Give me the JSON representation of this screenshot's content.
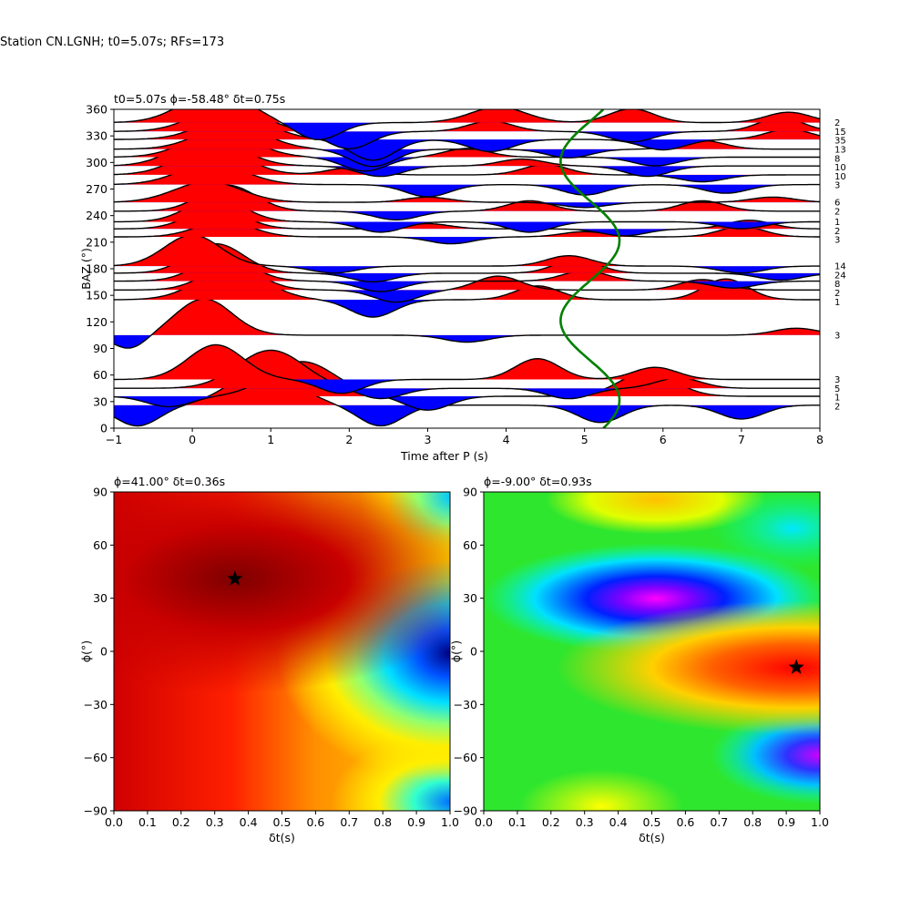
{
  "figure": {
    "suptitle": "Station CN.LGNH; t0=5.07s; RFs=173"
  },
  "chart_data": [
    {
      "type": "line",
      "subtype": "receiver-function-wiggles",
      "title": "t0=5.07s ϕ=-58.48° δt=0.75s",
      "xlabel": "Time after P (s)",
      "ylabel": "BAZ (°)",
      "xlim": [
        -1,
        8
      ],
      "ylim": [
        0,
        360
      ],
      "xticks": [
        -1,
        0,
        1,
        2,
        3,
        4,
        5,
        6,
        7,
        8
      ],
      "yticks": [
        0,
        30,
        60,
        90,
        120,
        150,
        180,
        210,
        240,
        270,
        300,
        330,
        360
      ],
      "positive_fill": "#ff0000",
      "negative_fill": "#0000ff",
      "fitted_curve_color": "#008000",
      "traces": [
        {
          "baz": 345,
          "count": "2",
          "components": [
            [
              0.3,
              0.9,
              60
            ],
            [
              1.6,
              -0.5,
              40
            ],
            [
              3.9,
              0.45,
              50
            ],
            [
              5.6,
              0.4,
              40
            ],
            [
              7.6,
              0.3,
              40
            ]
          ]
        },
        {
          "baz": 335,
          "count": "15",
          "components": [
            [
              0.45,
              0.75,
              60
            ],
            [
              2.0,
              -0.5,
              40
            ],
            [
              3.8,
              0.3,
              40
            ],
            [
              5.6,
              -0.3,
              40
            ],
            [
              7.5,
              0.4,
              40
            ]
          ]
        },
        {
          "baz": 326,
          "count": "35",
          "components": [
            [
              0.55,
              0.7,
              60
            ],
            [
              2.3,
              -0.6,
              40
            ],
            [
              3.8,
              -0.35,
              40
            ],
            [
              6.0,
              -0.3,
              40
            ],
            [
              7.6,
              0.3,
              40
            ]
          ]
        },
        {
          "baz": 315,
          "count": "13",
          "components": [
            [
              0.5,
              0.7,
              60
            ],
            [
              2.3,
              -0.5,
              40
            ],
            [
              4.8,
              -0.25,
              40
            ],
            [
              6.5,
              0.25,
              40
            ]
          ]
        },
        {
          "baz": 306,
          "count": "8",
          "components": [
            [
              0.35,
              0.75,
              60
            ],
            [
              2.2,
              -0.4,
              40
            ],
            [
              3.5,
              0.25,
              40
            ],
            [
              5.9,
              -0.25,
              40
            ]
          ]
        },
        {
          "baz": 296,
          "count": "10",
          "components": [
            [
              0.2,
              0.8,
              60
            ],
            [
              2.4,
              -0.3,
              40
            ],
            [
              4.2,
              0.2,
              40
            ],
            [
              5.8,
              -0.3,
              40
            ]
          ]
        },
        {
          "baz": 286,
          "count": "10",
          "components": [
            [
              0.25,
              0.8,
              60
            ],
            [
              2.0,
              0.2,
              40
            ],
            [
              4.5,
              0.3,
              40
            ],
            [
              6.5,
              -0.2,
              40
            ]
          ]
        },
        {
          "baz": 275,
          "count": "3",
          "components": [
            [
              0.25,
              0.6,
              60
            ],
            [
              3.0,
              -0.35,
              40
            ],
            [
              5.0,
              -0.3,
              40
            ],
            [
              6.8,
              -0.25,
              40
            ]
          ]
        },
        {
          "baz": 255,
          "count": "6",
          "components": [
            [
              0.2,
              0.6,
              60
            ],
            [
              3.0,
              0.15,
              40
            ],
            [
              5.0,
              -0.15,
              40
            ],
            [
              7.4,
              0.15,
              40
            ]
          ]
        },
        {
          "baz": 245,
          "count": "2",
          "components": [
            [
              0.45,
              0.75,
              50
            ],
            [
              2.6,
              -0.25,
              40
            ],
            [
              4.3,
              0.3,
              40
            ],
            [
              6.5,
              0.3,
              40
            ]
          ]
        },
        {
          "baz": 233,
          "count": "1",
          "components": [
            [
              0.3,
              0.7,
              50
            ],
            [
              2.4,
              -0.3,
              40
            ],
            [
              4.3,
              -0.3,
              40
            ],
            [
              7.0,
              -0.2,
              40
            ]
          ]
        },
        {
          "baz": 225,
          "count": "2",
          "components": [
            [
              0.3,
              0.6,
              50
            ],
            [
              3.0,
              0.15,
              40
            ],
            [
              5.5,
              -0.2,
              40
            ],
            [
              7.1,
              0.25,
              40
            ]
          ]
        },
        {
          "baz": 216,
          "count": "3",
          "components": [
            [
              0.4,
              0.45,
              50
            ],
            [
              3.3,
              -0.2,
              40
            ],
            [
              5.0,
              0.15,
              40
            ],
            [
              7.0,
              0.3,
              40
            ]
          ]
        },
        {
          "baz": 183,
          "count": "14",
          "components": [
            [
              0.0,
              0.9,
              50
            ],
            [
              1.8,
              -0.2,
              40
            ],
            [
              4.8,
              0.3,
              40
            ],
            [
              7.0,
              -0.2,
              40
            ]
          ]
        },
        {
          "baz": 175,
          "count": "24",
          "components": [
            [
              0.3,
              0.85,
              50
            ],
            [
              2.3,
              -0.25,
              40
            ],
            [
              4.9,
              0.4,
              40
            ],
            [
              7.5,
              -0.2,
              40
            ]
          ]
        },
        {
          "baz": 166,
          "count": "8",
          "components": [
            [
              0.4,
              0.7,
              50
            ],
            [
              2.4,
              -0.3,
              40
            ],
            [
              5.0,
              0.3,
              40
            ],
            [
              6.9,
              -0.2,
              40
            ]
          ]
        },
        {
          "baz": 156,
          "count": "2",
          "components": [
            [
              0.5,
              0.7,
              50
            ],
            [
              2.6,
              -0.35,
              40
            ],
            [
              3.9,
              0.4,
              40
            ],
            [
              6.5,
              0.3,
              40
            ]
          ]
        },
        {
          "baz": 145,
          "count": "1",
          "components": [
            [
              0.5,
              0.9,
              60
            ],
            [
              2.3,
              -0.5,
              40
            ],
            [
              4.4,
              0.4,
              40
            ],
            [
              6.8,
              0.6,
              40
            ]
          ]
        },
        {
          "baz": 105,
          "count": "3",
          "components": [
            [
              0.15,
              1.05,
              50
            ],
            [
              -0.8,
              -0.4,
              30
            ],
            [
              3.5,
              -0.2,
              40
            ],
            [
              7.7,
              0.2,
              40
            ]
          ]
        },
        {
          "baz": 55,
          "count": "3",
          "components": [
            [
              0.3,
              1.0,
              50
            ],
            [
              1.9,
              -0.4,
              40
            ],
            [
              4.4,
              0.6,
              40
            ],
            [
              5.9,
              0.35,
              40
            ]
          ]
        },
        {
          "baz": 45,
          "count": "5",
          "components": [
            [
              1.0,
              1.1,
              60
            ],
            [
              2.4,
              -0.3,
              40
            ],
            [
              4.8,
              -0.3,
              40
            ],
            [
              6.2,
              0.3,
              40
            ]
          ]
        },
        {
          "baz": 36,
          "count": "1",
          "components": [
            [
              1.4,
              1.0,
              60
            ],
            [
              -0.3,
              -0.3,
              40
            ],
            [
              3.0,
              -0.4,
              40
            ],
            [
              5.8,
              0.7,
              50
            ]
          ]
        },
        {
          "baz": 26,
          "count": "2",
          "components": [
            [
              0.9,
              1.0,
              60
            ],
            [
              -0.7,
              -0.6,
              40
            ],
            [
              2.4,
              -0.6,
              40
            ],
            [
              5.2,
              -0.5,
              40
            ],
            [
              7.0,
              -0.4,
              40
            ]
          ]
        }
      ]
    },
    {
      "type": "heatmap",
      "title": "ϕ=41.00° δt=0.36s",
      "xlabel": "δt(s)",
      "ylabel": "ϕ(°)",
      "xlim": [
        0.0,
        1.0
      ],
      "ylim": [
        -90,
        90
      ],
      "xticks": [
        0.0,
        0.1,
        0.2,
        0.3,
        0.4,
        0.5,
        0.6,
        0.7,
        0.8,
        0.9,
        1.0
      ],
      "yticks": [
        -90,
        -60,
        -30,
        0,
        30,
        60,
        90
      ],
      "colormap": "jet",
      "best": {
        "phi": 41.0,
        "dt": 0.36
      },
      "marker": "star"
    },
    {
      "type": "heatmap",
      "title": "ϕ=-9.00° δt=0.93s",
      "xlabel": "δt(s)",
      "ylabel": "ϕ(°)",
      "xlim": [
        0.0,
        1.0
      ],
      "ylim": [
        -90,
        90
      ],
      "xticks": [
        0.0,
        0.1,
        0.2,
        0.3,
        0.4,
        0.5,
        0.6,
        0.7,
        0.8,
        0.9,
        1.0
      ],
      "yticks": [
        -90,
        -60,
        -30,
        0,
        30,
        60,
        90
      ],
      "colormap": "hsv",
      "best": {
        "phi": -9.0,
        "dt": 0.93
      },
      "marker": "star"
    }
  ]
}
